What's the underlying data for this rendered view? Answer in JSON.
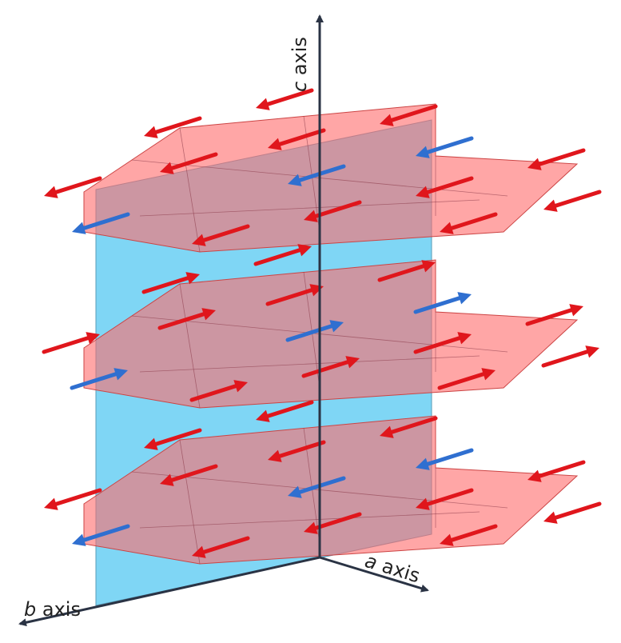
{
  "axes": {
    "c": {
      "letter": "c",
      "word": "axis"
    },
    "a": {
      "letter": "a",
      "word": "axis"
    },
    "b": {
      "letter": "b",
      "word": "axis"
    }
  }
}
